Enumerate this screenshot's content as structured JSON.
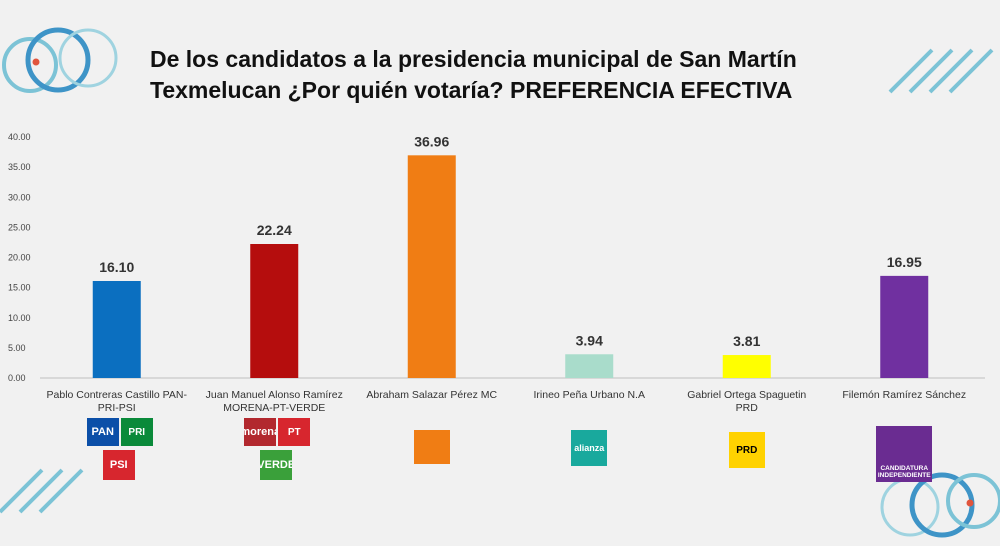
{
  "title_lines": [
    "De los candidatos a la presidencia municipal de San Martín",
    "Texmelucan ¿Por quién votaría? PREFERENCIA EFECTIVA"
  ],
  "chart_data": {
    "type": "bar",
    "title": "De los candidatos a la presidencia municipal de San Martín Texmelucan ¿Por quién votaría? PREFERENCIA EFECTIVA",
    "categories": [
      [
        "Pablo Contreras Castillo PAN-",
        "PRI-PSI"
      ],
      [
        "Juan Manuel Alonso Ramírez",
        "MORENA-PT-VERDE"
      ],
      [
        "Abraham Salazar Pérez MC"
      ],
      [
        "Irineo Peña Urbano N.A"
      ],
      [
        "Gabriel Ortega Spaguetin",
        "PRD"
      ],
      [
        "Filemón Ramírez Sánchez"
      ]
    ],
    "values": [
      16.1,
      22.24,
      36.96,
      3.94,
      3.81,
      16.95
    ],
    "value_labels": [
      "16.10",
      "22.24",
      "36.96",
      "3.94",
      "3.81",
      "16.95"
    ],
    "colors": [
      "#0b6fc0",
      "#b50d0d",
      "#f07d14",
      "#a9dccb",
      "#ffff00",
      "#7030a0"
    ],
    "ylim": [
      0,
      40
    ],
    "yticks": [
      "0.00",
      "5.00",
      "10.00",
      "15.00",
      "20.00",
      "25.00",
      "30.00",
      "35.00",
      "40.00"
    ],
    "grid": false,
    "legend": "none"
  },
  "logos": [
    {
      "name": "pan-logo",
      "text": "PAN",
      "color": "#0b4fa8",
      "group": 0
    },
    {
      "name": "pri-logo",
      "text": "PRI",
      "color": "#0a8a3a",
      "group": 0
    },
    {
      "name": "psi-logo",
      "text": "PSI",
      "color": "#d7262e",
      "group": 0
    },
    {
      "name": "morena-logo",
      "text": "morena",
      "color": "#b2282e",
      "group": 1
    },
    {
      "name": "pt-logo",
      "text": "PT",
      "color": "#d7262e",
      "group": 1
    },
    {
      "name": "verde-logo",
      "text": "VERDE",
      "color": "#3aa03a",
      "group": 1
    },
    {
      "name": "mc-logo",
      "text": "",
      "color": "#f07d14",
      "group": 2
    },
    {
      "name": "nueva-alianza-logo",
      "text": "alianza",
      "color": "#19a99d",
      "group": 3
    },
    {
      "name": "prd-logo",
      "text": "PRD",
      "color": "#ffd200",
      "group": 4
    },
    {
      "name": "candidatura-independiente-logo",
      "text": "CANDIDATURA INDEPENDIENTE",
      "color": "#6a2c91",
      "group": 5
    }
  ]
}
